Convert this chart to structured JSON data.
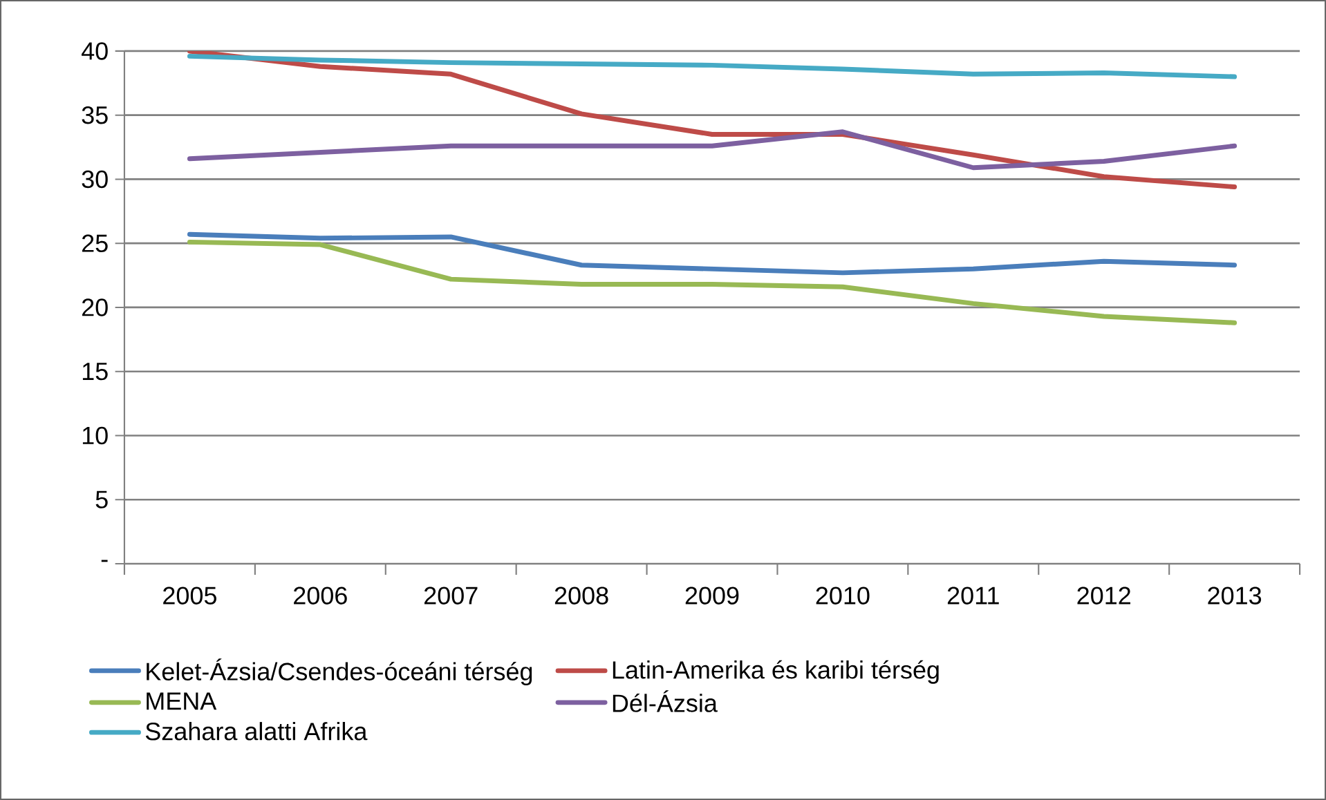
{
  "chart_data": {
    "type": "line",
    "categories": [
      "2005",
      "2006",
      "2007",
      "2008",
      "2009",
      "2010",
      "2011",
      "2012",
      "2013"
    ],
    "ylim": [
      0,
      40
    ],
    "yticks": [
      {
        "value": 0,
        "label": "-"
      },
      5,
      10,
      15,
      20,
      25,
      30,
      35,
      40
    ],
    "grid": "y",
    "legend": "bottom",
    "line_style": "solid",
    "marker": "none",
    "series": [
      {
        "name": "Kelet-Ázsia/Csendes-óceáni térség",
        "color": "#4a7ebb",
        "values": [
          25.7,
          25.4,
          25.5,
          23.3,
          23.0,
          22.7,
          23.0,
          23.6,
          23.3
        ]
      },
      {
        "name": "Latin-Amerika és karibi térség",
        "color": "#be4b48",
        "values": [
          40.0,
          38.8,
          38.2,
          35.1,
          33.5,
          33.5,
          31.9,
          30.2,
          29.4
        ]
      },
      {
        "name": "MENA",
        "color": "#98b954",
        "values": [
          25.1,
          24.9,
          22.2,
          21.8,
          21.8,
          21.6,
          20.3,
          19.3,
          18.8
        ]
      },
      {
        "name": "Dél-Ázsia",
        "color": "#7d60a0",
        "values": [
          31.6,
          32.1,
          32.6,
          32.6,
          32.6,
          33.7,
          30.9,
          31.4,
          32.6
        ]
      },
      {
        "name": "Szahara alatti Afrika",
        "color": "#46aac5",
        "values": [
          39.6,
          39.3,
          39.1,
          39.0,
          38.9,
          38.6,
          38.2,
          38.3,
          38.0
        ]
      }
    ]
  }
}
